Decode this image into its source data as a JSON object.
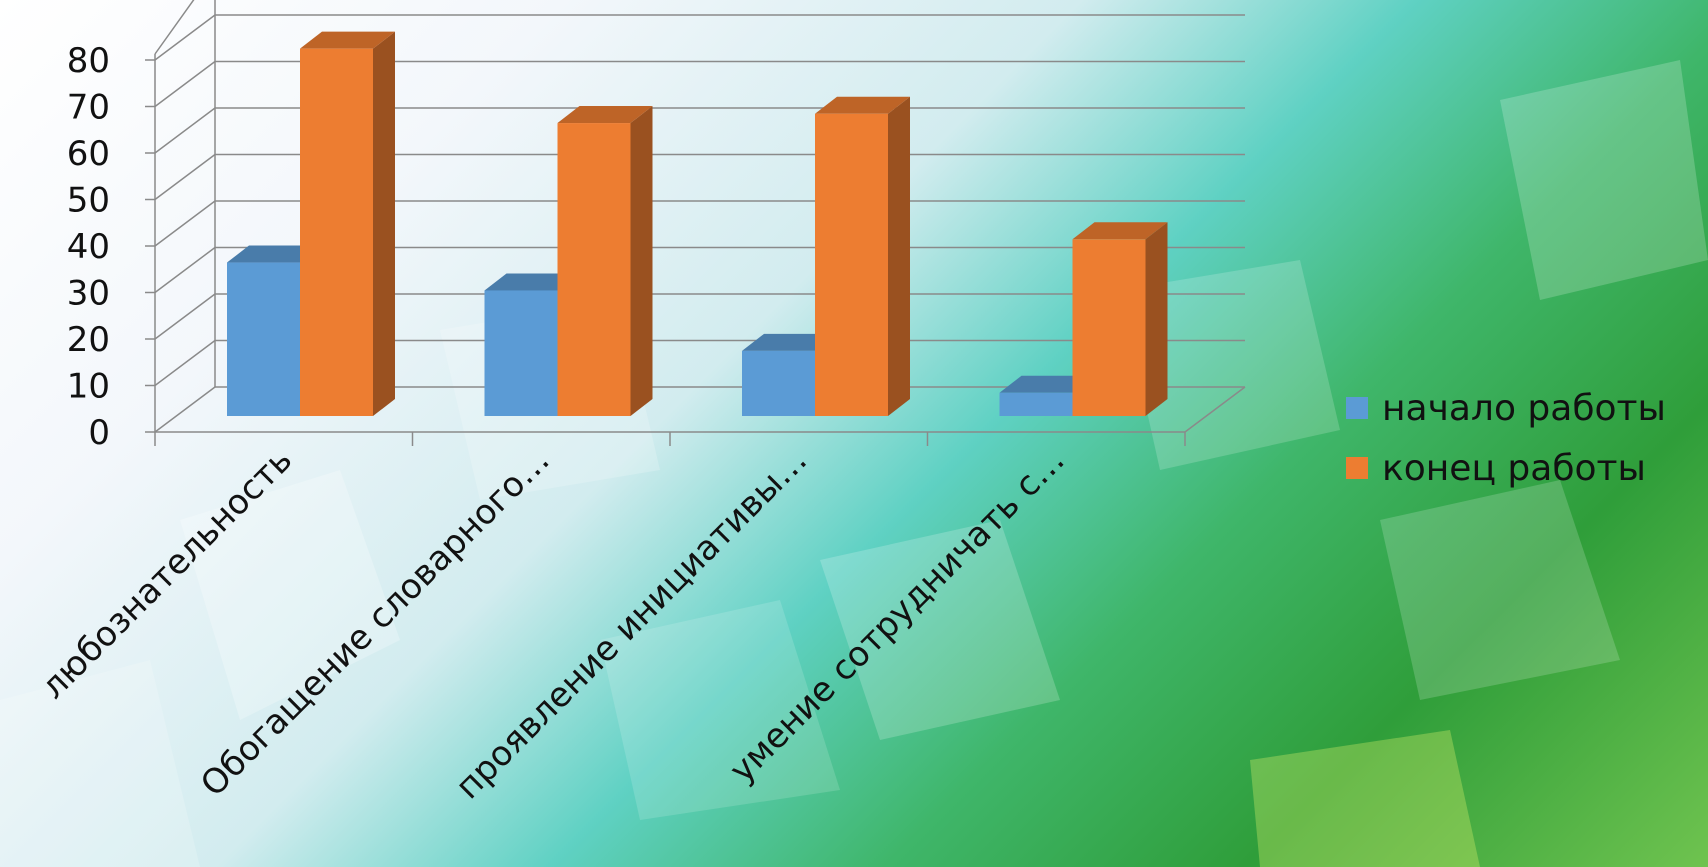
{
  "chart_data": {
    "type": "bar",
    "style": "3d-clustered-column",
    "categories": [
      "любознательность",
      "Обогащение словарного…",
      "проявление инициативы…",
      "умение сотрудничать с…"
    ],
    "series": [
      {
        "name": "начало работы",
        "values": [
          33,
          27,
          14,
          5
        ],
        "color": "#5B9BD5"
      },
      {
        "name": "конец работы",
        "values": [
          79,
          63,
          65,
          38
        ],
        "color": "#ED7D31"
      }
    ],
    "yticks": [
      0,
      10,
      20,
      30,
      40,
      50,
      60,
      70,
      80
    ],
    "ylim": [
      0,
      80
    ],
    "grid": true,
    "legend_position": "right",
    "title": "",
    "xlabel": "",
    "ylabel": ""
  }
}
